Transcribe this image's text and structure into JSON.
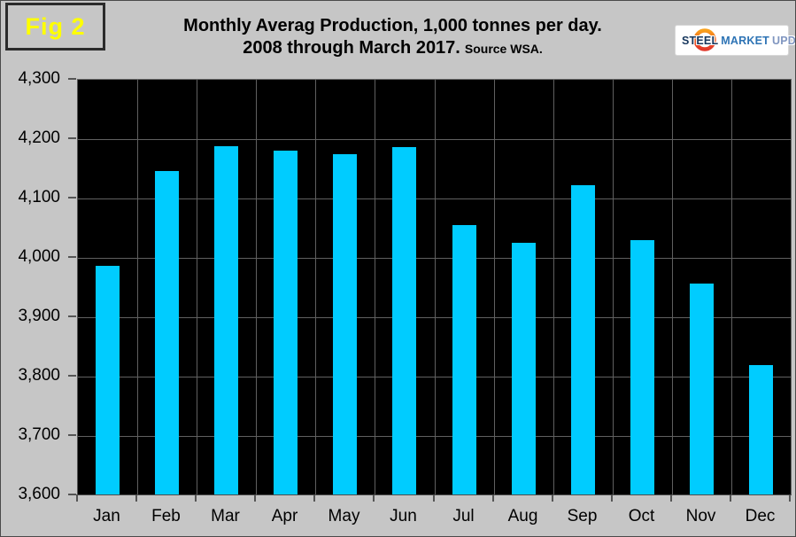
{
  "figure": {
    "label": "Fig 2"
  },
  "header": {
    "title_line1": "Monthly Averag Production, 1,000 tonnes per day.",
    "title_line2": "2008 through March 2017.",
    "source": "Source WSA."
  },
  "logo": {
    "word1": "STEEL",
    "word2": "MARKET",
    "word3": "UPDATE",
    "steel_color": "#17375D",
    "market_color": "#2E74B5",
    "update_color": "#8096C0",
    "crescent_top_color": "#F9A11B",
    "crescent_bottom_color": "#E1372A"
  },
  "colors": {
    "page_background": "#C6C6C6",
    "plot_background": "#000000",
    "gridline": "#606060",
    "axis": "#555555",
    "bar": "#00CCFF",
    "fig_label": "#FFFF00",
    "title_text": "#000000"
  },
  "chart_data": {
    "type": "bar",
    "title": "Monthly Averag Production, 1,000 tonnes per day. 2008 through March 2017.",
    "source": "Source WSA.",
    "categories": [
      "Jan",
      "Feb",
      "Mar",
      "Apr",
      "May",
      "Jun",
      "Jul",
      "Aug",
      "Sep",
      "Oct",
      "Nov",
      "Dec"
    ],
    "values": [
      3986,
      4147,
      4188,
      4180,
      4175,
      4187,
      4055,
      4025,
      4122,
      4030,
      3957,
      3820
    ],
    "xlabel": "",
    "ylabel": "",
    "ylim": [
      3600,
      4300
    ],
    "ytick_step": 100,
    "yticks": [
      {
        "value": 3600,
        "label": "3,600"
      },
      {
        "value": 3700,
        "label": "3,700"
      },
      {
        "value": 3800,
        "label": "3,800"
      },
      {
        "value": 3900,
        "label": "3,900"
      },
      {
        "value": 4000,
        "label": "4,000"
      },
      {
        "value": 4100,
        "label": "4,100"
      },
      {
        "value": 4200,
        "label": "4,200"
      },
      {
        "value": 4300,
        "label": "4,300"
      }
    ],
    "grid": true,
    "legend": false,
    "bar_color": "#00CCFF",
    "plot_background": "#000000"
  }
}
